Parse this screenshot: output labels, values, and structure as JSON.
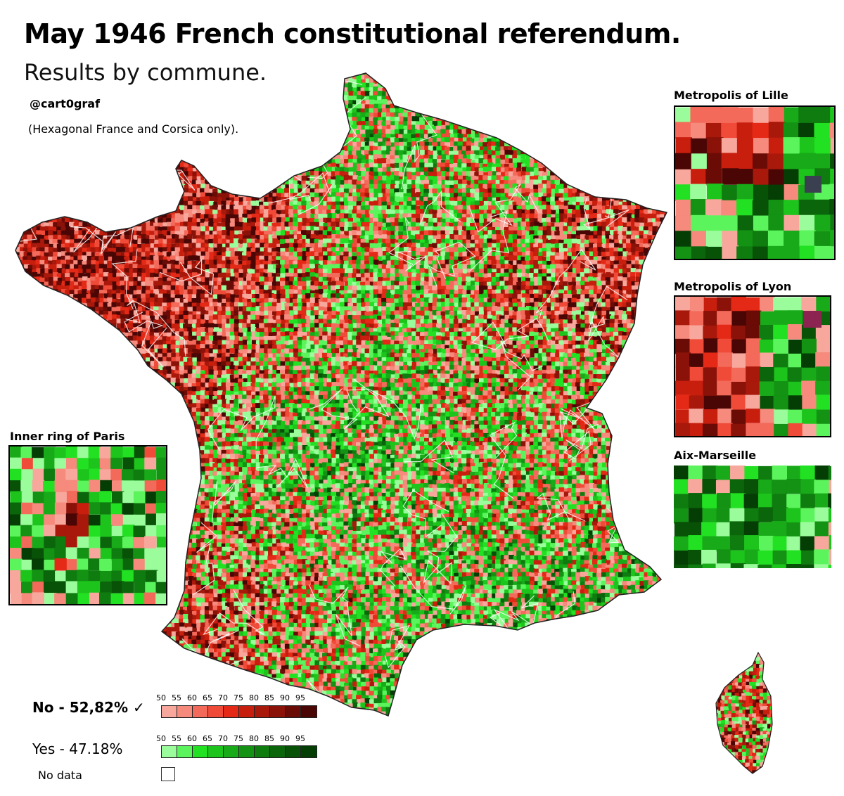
{
  "title": "May 1946 French constitutional referendum.",
  "subtitle": "Results by commune.",
  "credit": "@cart0graf",
  "note": "(Hexagonal France and Corsica only).",
  "insets": {
    "lille": "Metropolis of Lille",
    "lyon": "Metropolis of Lyon",
    "marseille": "Aix-Marseille",
    "paris": "Inner ring of Paris"
  },
  "legend": {
    "no_label": "No - 52,82% ✓",
    "yes_label": "Yes - 47.18%",
    "nodata_label": "No data",
    "ticks": [
      "50",
      "55",
      "60",
      "65",
      "70",
      "75",
      "80",
      "85",
      "90",
      "95"
    ],
    "no_colors": [
      "#f7a79c",
      "#f58a7d",
      "#f36a5b",
      "#f04a38",
      "#e42a16",
      "#c81e0e",
      "#a8180b",
      "#8a1209",
      "#6a0b06",
      "#4a0604"
    ],
    "yes_colors": [
      "#9afc9a",
      "#5cf45c",
      "#22e022",
      "#1cc41c",
      "#18aa18",
      "#139213",
      "#0f7c0f",
      "#0b660b",
      "#085208",
      "#053e05"
    ]
  },
  "colors": {
    "no_scale": [
      "#f7a79c",
      "#f58a7d",
      "#f36a5b",
      "#f04a38",
      "#e42a16",
      "#c81e0e",
      "#a8180b",
      "#8a1209",
      "#6a0b06",
      "#4a0604"
    ],
    "yes_scale": [
      "#9afc9a",
      "#5cf45c",
      "#22e022",
      "#1cc41c",
      "#18aa18",
      "#139213",
      "#0f7c0f",
      "#0b660b",
      "#085208",
      "#053e05"
    ]
  }
}
